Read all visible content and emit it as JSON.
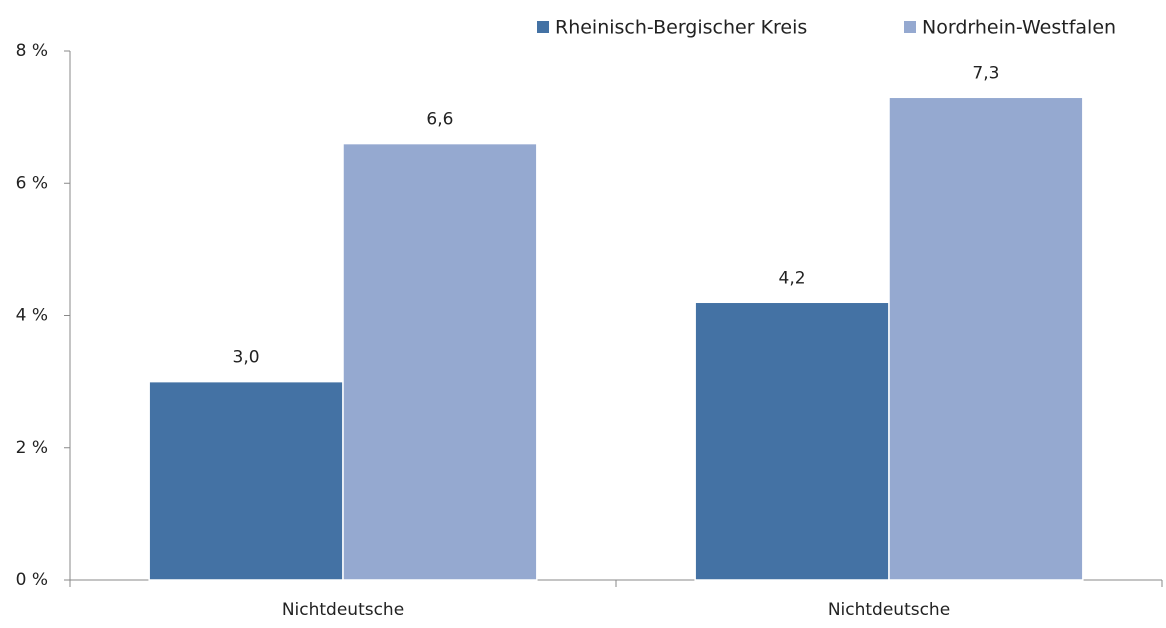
{
  "chart_data": {
    "type": "bar",
    "categories": [
      "Nichtdeutsche",
      "Nichtdeutsche"
    ],
    "series": [
      {
        "name": "Rheinisch-Bergischer Kreis",
        "color": "#4472a4",
        "values": [
          3.0,
          4.2
        ],
        "value_labels": [
          "3,0",
          "4,2"
        ]
      },
      {
        "name": "Nordrhein-Westfalen",
        "color": "#95a9d0",
        "values": [
          6.6,
          7.3
        ],
        "value_labels": [
          "6,6",
          "7,3"
        ]
      }
    ],
    "ylim": [
      0,
      8
    ],
    "yticks": [
      {
        "value": 0,
        "label": "0 %"
      },
      {
        "value": 2,
        "label": "2 %"
      },
      {
        "value": 4,
        "label": "4 %"
      },
      {
        "value": 6,
        "label": "6 %"
      },
      {
        "value": 8,
        "label": "8 %"
      }
    ],
    "legend": "top-right"
  }
}
